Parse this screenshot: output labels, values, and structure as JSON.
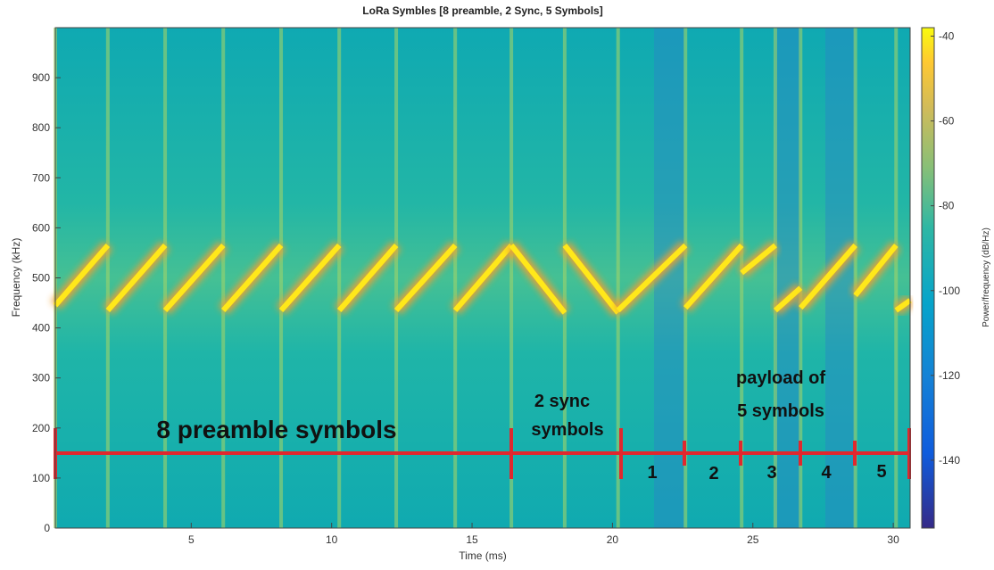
{
  "chart_data": {
    "type": "spectrogram",
    "title": "LoRa Symbles [8 preamble, 2 Sync, 5 Symbols]",
    "x_label": "Time (ms)",
    "y_label": "Frequency (kHz)",
    "colorbar_label": "Power/frequency (dB/Hz)",
    "xlim": [
      0.16,
      30.6
    ],
    "xticks": [
      5,
      10,
      15,
      20,
      25,
      30
    ],
    "ylim": [
      0,
      1000
    ],
    "yticks": [
      0,
      100,
      200,
      300,
      400,
      500,
      600,
      700,
      800,
      900
    ],
    "clim": [
      -156,
      -38
    ],
    "cticks": [
      -40,
      -60,
      -80,
      -100,
      -120,
      -140
    ],
    "chirp_color": "#ffe81a",
    "chirps": [
      {
        "t": [
          0.16,
          2.03
        ],
        "f": [
          445,
          565
        ]
      },
      {
        "t": [
          2.03,
          4.07
        ],
        "f": [
          435,
          565
        ]
      },
      {
        "t": [
          4.07,
          6.14
        ],
        "f": [
          435,
          565
        ]
      },
      {
        "t": [
          6.14,
          8.2
        ],
        "f": [
          435,
          565
        ]
      },
      {
        "t": [
          8.2,
          10.27
        ],
        "f": [
          435,
          565
        ]
      },
      {
        "t": [
          10.27,
          12.3
        ],
        "f": [
          435,
          565
        ]
      },
      {
        "t": [
          12.3,
          14.4
        ],
        "f": [
          435,
          565
        ]
      },
      {
        "t": [
          14.4,
          16.4
        ],
        "f": [
          435,
          565
        ]
      },
      {
        "t": [
          16.4,
          18.3
        ],
        "f": [
          565,
          430
        ]
      },
      {
        "t": [
          18.3,
          20.2
        ],
        "f": [
          565,
          430
        ]
      },
      {
        "t": [
          20.2,
          22.6
        ],
        "f": [
          435,
          565
        ]
      },
      {
        "t": [
          22.6,
          24.6
        ],
        "f": [
          440,
          565
        ]
      },
      {
        "t": [
          24.6,
          25.8
        ],
        "f": [
          510,
          565
        ]
      },
      {
        "t": [
          25.8,
          26.7
        ],
        "f": [
          435,
          480
        ]
      },
      {
        "t": [
          26.7,
          28.65
        ],
        "f": [
          440,
          565
        ]
      },
      {
        "t": [
          28.65,
          30.1
        ],
        "f": [
          465,
          565
        ]
      },
      {
        "t": [
          30.1,
          30.6
        ],
        "f": [
          435,
          455
        ]
      }
    ],
    "annotations": [
      "8 preamble symbols",
      "2 sync",
      "symbols",
      "payload of",
      "5 symbols",
      "1",
      "2",
      "3",
      "4",
      "5"
    ]
  }
}
